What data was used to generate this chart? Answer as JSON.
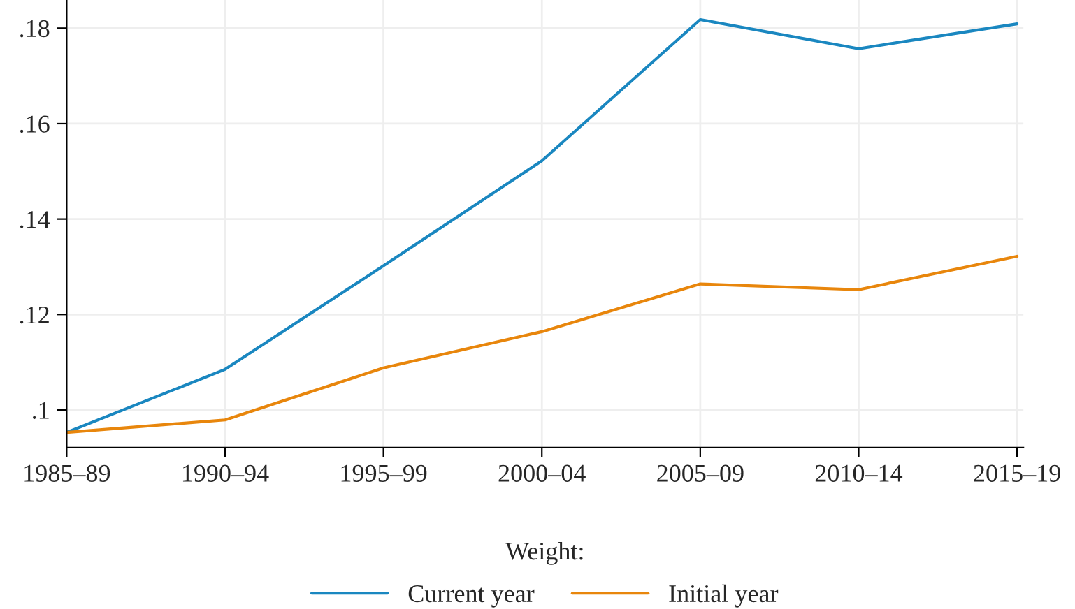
{
  "chart_data": {
    "type": "line",
    "categories": [
      "1985–89",
      "1990–94",
      "1995–99",
      "2000–04",
      "2005–09",
      "2010–14",
      "2015–19"
    ],
    "series": [
      {
        "name": "Current year",
        "color": "#1a87c0",
        "values": [
          0.0953,
          0.1085,
          0.1302,
          0.1522,
          0.1818,
          0.1757,
          0.1809
        ]
      },
      {
        "name": "Initial year",
        "color": "#e8860c",
        "values": [
          0.0953,
          0.0979,
          0.1088,
          0.1164,
          0.1264,
          0.1252,
          0.1322
        ]
      }
    ],
    "ylim": [
      0.0921,
      0.1859
    ],
    "yticks": [
      {
        "value": 0.1,
        "label": ".1"
      },
      {
        "value": 0.12,
        "label": ".12"
      },
      {
        "value": 0.14,
        "label": ".14"
      },
      {
        "value": 0.16,
        "label": ".16"
      },
      {
        "value": 0.18,
        "label": ".18"
      }
    ],
    "legend_title": "Weight:",
    "legend": "bottom",
    "grid": true,
    "marker": "none",
    "line_style": "solid"
  }
}
